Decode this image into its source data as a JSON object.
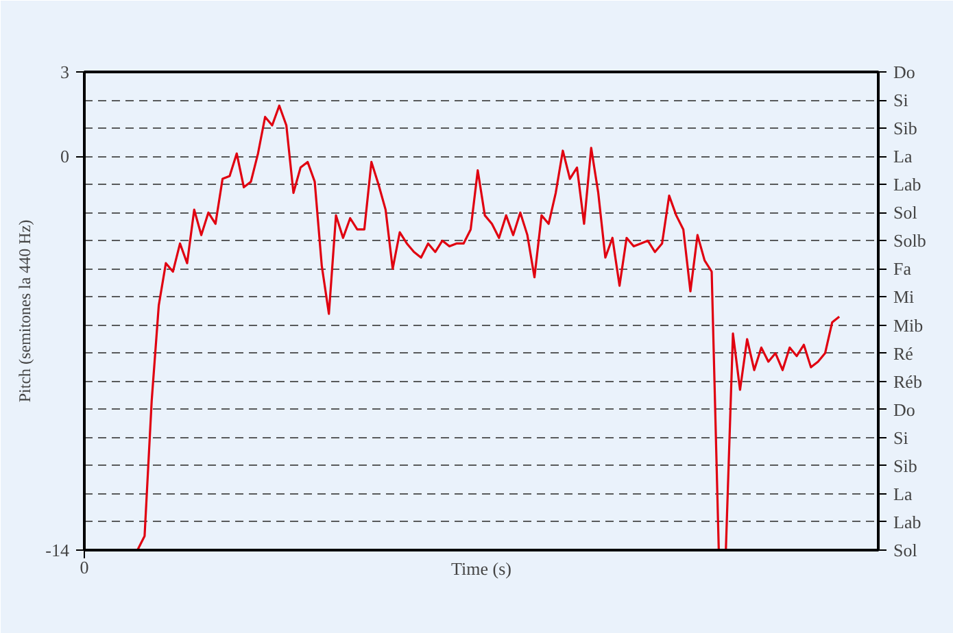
{
  "chart_data": {
    "type": "line",
    "xlabel": "Time (s)",
    "ylabel": "Pitch (semitones la 440 Hz)",
    "annotations": [
      "0",
      "Do",
      "Si",
      "Sib",
      "La",
      "Lab",
      "Sol",
      "Solb",
      "Fa",
      "Mi",
      "Mib",
      "Ré",
      "Réb",
      "Do",
      "Si",
      "Sib",
      "La",
      "Lab",
      "Sol"
    ],
    "categories": [
      null,
      null,
      null,
      null,
      null,
      null,
      null,
      null,
      null,
      null,
      null,
      null,
      null,
      null,
      null,
      null,
      null,
      null,
      null,
      null,
      null,
      null,
      null,
      null,
      null,
      null,
      null,
      null,
      null,
      null,
      null,
      null,
      null,
      null,
      null,
      null,
      null,
      null,
      null,
      null,
      null,
      null,
      null,
      null,
      null,
      null,
      null,
      null,
      null,
      null,
      null,
      null,
      null,
      null,
      null,
      null,
      null,
      null,
      null,
      null,
      null,
      null,
      null,
      null,
      null,
      null,
      null,
      null,
      null,
      null,
      null,
      null,
      null,
      null,
      null,
      null,
      null,
      null,
      null,
      null,
      null,
      null,
      null,
      null,
      null,
      null,
      null,
      null,
      null,
      null,
      null,
      null,
      null,
      null,
      null,
      null,
      null,
      null,
      null,
      null
    ],
    "ylim": [
      -14,
      3
    ],
    "yticks": [
      3,
      0,
      -14
    ],
    "grid": "y",
    "line_style": "solid",
    "marker": "none",
    "series": [
      {
        "color": "#e00010",
        "values": [
          -14,
          -13.5,
          -8.7,
          -5.3,
          -3.8,
          -4.1,
          -3.1,
          -3.8,
          -1.9,
          -2.8,
          -2.0,
          -2.4,
          -0.8,
          -0.7,
          0.1,
          -1.1,
          -0.9,
          0.1,
          1.4,
          1.1,
          1.8,
          1.1,
          -1.3,
          -0.4,
          -0.2,
          -0.9,
          -3.9,
          -5.6,
          -2.1,
          -2.9,
          -2.2,
          -2.6,
          -2.6,
          -0.2,
          -1.0,
          -1.9,
          -4.0,
          -2.7,
          -3.1,
          -3.4,
          -3.6,
          -3.1,
          -3.4,
          -3.0,
          -3.2,
          -3.1,
          -3.1,
          -2.6,
          -0.5,
          -2.1,
          -2.4,
          -2.9,
          -2.1,
          -2.8,
          -2.0,
          -2.8,
          -4.3,
          -2.1,
          -2.4,
          -1.3,
          0.2,
          -0.8,
          -0.4,
          -2.4,
          0.3,
          -1.3,
          -3.6,
          -2.9,
          -4.6,
          -2.9,
          -3.2,
          -3.1,
          -3.0,
          -3.4,
          -3.1,
          -1.4,
          -2.1,
          -2.6,
          -4.8,
          -2.8,
          -3.7,
          -4.1,
          -14,
          -14,
          -6.3,
          -8.3,
          -6.5,
          -7.6,
          -6.8,
          -7.3,
          -7.0,
          -7.6,
          -6.8,
          -7.1,
          -6.7,
          -7.5,
          -7.3,
          -7.0,
          -5.9,
          -5.7
        ]
      }
    ]
  }
}
